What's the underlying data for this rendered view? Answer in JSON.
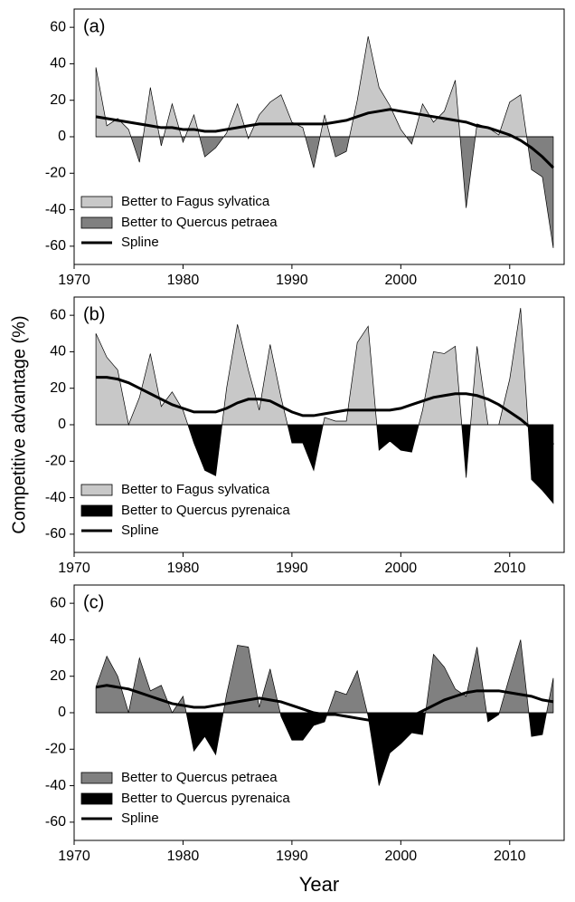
{
  "chart_data": [
    {
      "type": "area",
      "label": "(a)",
      "x": [
        1972,
        1973,
        1974,
        1975,
        1976,
        1977,
        1978,
        1979,
        1980,
        1981,
        1982,
        1983,
        1984,
        1985,
        1986,
        1987,
        1988,
        1989,
        1990,
        1991,
        1992,
        1993,
        1994,
        1995,
        1996,
        1997,
        1998,
        1999,
        2000,
        2001,
        2002,
        2003,
        2004,
        2005,
        2006,
        2007,
        2008,
        2009,
        2010,
        2011,
        2012,
        2013,
        2014
      ],
      "values": [
        38,
        6,
        10,
        4,
        -14,
        27,
        -5,
        18,
        -3,
        12,
        -11,
        -6,
        2,
        18,
        -1,
        12,
        19,
        23,
        8,
        5,
        -17,
        12,
        -11,
        -8,
        20,
        55,
        27,
        17,
        4,
        -4,
        18,
        8,
        14,
        31,
        -39,
        7,
        5,
        1,
        19,
        23,
        -18,
        -22,
        -61
      ],
      "fills": [
        {
          "name": "Better to Fagus sylvatica",
          "color": "#c8c8c8"
        },
        {
          "name": "Better to Quercus petraea",
          "color": "#808080"
        }
      ],
      "spline": {
        "name": "Spline",
        "color": "#000000",
        "values": [
          11,
          10,
          9,
          8,
          7,
          6,
          5,
          5,
          4,
          4,
          3,
          3,
          4,
          5,
          6,
          7,
          7,
          7,
          7,
          7,
          7,
          7,
          8,
          9,
          11,
          13,
          14,
          15,
          14,
          13,
          12,
          11,
          10,
          9,
          8,
          6,
          5,
          3,
          1,
          -2,
          -6,
          -11,
          -17
        ]
      },
      "xlim": [
        1970,
        2015
      ],
      "xticks": [
        1970,
        1980,
        1990,
        2000,
        2010
      ],
      "ylim": [
        -70,
        70
      ],
      "yticks": [
        -60,
        -40,
        -20,
        0,
        20,
        40,
        60
      ]
    },
    {
      "type": "area",
      "label": "(b)",
      "ylabel": "Competitive advantage (%)",
      "x": [
        1972,
        1973,
        1974,
        1975,
        1976,
        1977,
        1978,
        1979,
        1980,
        1981,
        1982,
        1983,
        1984,
        1985,
        1986,
        1987,
        1988,
        1989,
        1990,
        1991,
        1992,
        1993,
        1994,
        1995,
        1996,
        1997,
        1998,
        1999,
        2000,
        2001,
        2002,
        2003,
        2004,
        2005,
        2006,
        2007,
        2008,
        2009,
        2010,
        2011,
        2012,
        2013,
        2014
      ],
      "values": [
        50,
        37,
        30,
        0,
        15,
        39,
        10,
        18,
        8,
        -10,
        -25,
        -28,
        20,
        55,
        30,
        8,
        44,
        15,
        -10,
        -10,
        -25,
        4,
        2,
        2,
        45,
        54,
        -14,
        -9,
        -14,
        -15,
        8,
        40,
        39,
        43,
        -29,
        43,
        0,
        0,
        25,
        64,
        -30,
        -36,
        -43
      ],
      "fills": [
        {
          "name": "Better to Fagus sylvatica",
          "color": "#c8c8c8"
        },
        {
          "name": "Better to Quercus pyrenaica",
          "color": "#000000"
        }
      ],
      "spline": {
        "name": "Spline",
        "color": "#000000",
        "values": [
          26,
          26,
          25,
          23,
          20,
          17,
          14,
          11,
          9,
          7,
          7,
          7,
          9,
          12,
          14,
          14,
          13,
          10,
          7,
          5,
          5,
          6,
          7,
          8,
          8,
          8,
          8,
          8,
          9,
          11,
          13,
          15,
          16,
          17,
          17,
          16,
          14,
          11,
          7,
          3,
          -2,
          -6,
          -11
        ]
      },
      "xlim": [
        1970,
        2015
      ],
      "xticks": [
        1970,
        1980,
        1990,
        2000,
        2010
      ],
      "ylim": [
        -70,
        70
      ],
      "yticks": [
        -60,
        -40,
        -20,
        0,
        20,
        40,
        60
      ]
    },
    {
      "type": "area",
      "label": "(c)",
      "xlabel": "Year",
      "x": [
        1972,
        1973,
        1974,
        1975,
        1976,
        1977,
        1978,
        1979,
        1980,
        1981,
        1982,
        1983,
        1984,
        1985,
        1986,
        1987,
        1988,
        1989,
        1990,
        1991,
        1992,
        1993,
        1994,
        1995,
        1996,
        1997,
        1998,
        1999,
        2000,
        2001,
        2002,
        2003,
        2004,
        2005,
        2006,
        2007,
        2008,
        2009,
        2010,
        2011,
        2012,
        2013,
        2014
      ],
      "values": [
        14,
        31,
        20,
        0,
        30,
        12,
        15,
        0,
        9,
        -21,
        -13,
        -23,
        10,
        37,
        36,
        3,
        24,
        -2,
        -15,
        -15,
        -7,
        -5,
        12,
        10,
        23,
        -2,
        -40,
        -22,
        -17,
        -11,
        -12,
        32,
        25,
        13,
        9,
        36,
        -5,
        -1,
        20,
        40,
        -13,
        -12,
        19
      ],
      "fills": [
        {
          "name": "Better to Quercus petraea",
          "color": "#808080"
        },
        {
          "name": "Better to Quercus pyrenaica",
          "color": "#000000"
        }
      ],
      "spline": {
        "name": "Spline",
        "color": "#000000",
        "values": [
          14,
          15,
          14,
          13,
          11,
          9,
          7,
          5,
          4,
          3,
          3,
          4,
          5,
          6,
          7,
          8,
          7,
          6,
          4,
          2,
          0,
          -1,
          -1,
          -2,
          -3,
          -4,
          -5,
          -5,
          -4,
          -2,
          1,
          4,
          7,
          9,
          11,
          12,
          12,
          12,
          11,
          10,
          9,
          7,
          6
        ]
      },
      "xlim": [
        1970,
        2015
      ],
      "xticks": [
        1970,
        1980,
        1990,
        2000,
        2010
      ],
      "ylim": [
        -70,
        70
      ],
      "yticks": [
        -60,
        -40,
        -20,
        0,
        20,
        40,
        60
      ]
    }
  ]
}
